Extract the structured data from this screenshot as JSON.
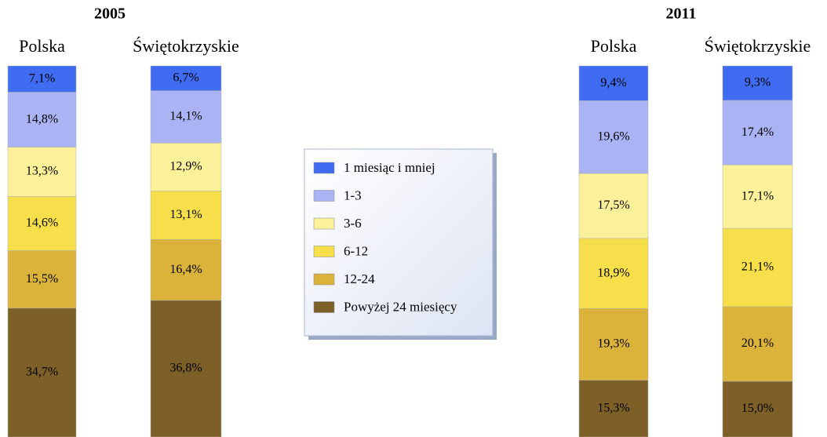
{
  "chart_data": {
    "type": "stacked_bar",
    "series": [
      {
        "name": "1 miesiąc i mniej",
        "color": "#3f6cf0"
      },
      {
        "name": "1-3",
        "color": "#aab4f5"
      },
      {
        "name": "3-6",
        "color": "#fbf19a"
      },
      {
        "name": "6-12",
        "color": "#f6df4a"
      },
      {
        "name": "12-24",
        "color": "#dbb23a"
      },
      {
        "name": "Powyżej 24 miesięcy",
        "color": "#7d5f28"
      }
    ],
    "panels": [
      {
        "title": "2005",
        "categories": [
          "Polska",
          "Świętokrzyskie"
        ],
        "values": [
          [
            7.1,
            14.8,
            13.3,
            14.6,
            15.5,
            34.7
          ],
          [
            6.7,
            14.1,
            12.9,
            13.1,
            16.4,
            36.8
          ]
        ],
        "value_labels": [
          [
            "7,1%",
            "14,8%",
            "13,3%",
            "14,6%",
            "15,5%",
            "34,7%"
          ],
          [
            "6,7%",
            "14,1%",
            "12,9%",
            "13,1%",
            "16,4%",
            "36,8%"
          ]
        ]
      },
      {
        "title": "2011",
        "categories": [
          "Polska",
          "Świętokrzyskie"
        ],
        "values": [
          [
            9.4,
            19.6,
            17.5,
            18.9,
            19.3,
            15.3
          ],
          [
            9.3,
            17.4,
            17.1,
            21.1,
            20.1,
            15.0
          ]
        ],
        "value_labels": [
          [
            "9,4%",
            "19,6%",
            "17,5%",
            "18,9%",
            "19,3%",
            "15,3%"
          ],
          [
            "9,3%",
            "17,4%",
            "17,1%",
            "21,1%",
            "20,1%",
            "15,0%"
          ]
        ]
      }
    ]
  }
}
